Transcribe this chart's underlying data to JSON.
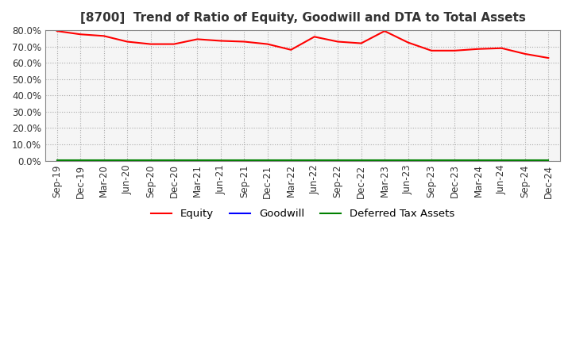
{
  "title": "[8700]  Trend of Ratio of Equity, Goodwill and DTA to Total Assets",
  "x_labels": [
    "Sep-19",
    "Dec-19",
    "Mar-20",
    "Jun-20",
    "Sep-20",
    "Dec-20",
    "Mar-21",
    "Jun-21",
    "Sep-21",
    "Dec-21",
    "Mar-22",
    "Jun-22",
    "Sep-22",
    "Dec-22",
    "Mar-23",
    "Jun-23",
    "Sep-23",
    "Dec-23",
    "Mar-24",
    "Jun-24",
    "Sep-24",
    "Dec-24"
  ],
  "equity": [
    79.5,
    77.5,
    76.5,
    73.0,
    71.5,
    71.5,
    74.5,
    73.5,
    73.0,
    71.5,
    68.0,
    76.0,
    73.0,
    72.0,
    79.5,
    72.5,
    67.5,
    67.5,
    68.5,
    69.0,
    65.5,
    63.0
  ],
  "goodwill": [
    0.0,
    0.0,
    0.0,
    0.0,
    0.0,
    0.0,
    0.0,
    0.0,
    0.0,
    0.0,
    0.0,
    0.0,
    0.0,
    0.0,
    0.0,
    0.0,
    0.0,
    0.0,
    0.0,
    0.0,
    0.0,
    0.0
  ],
  "dta": [
    0.3,
    0.3,
    0.3,
    0.3,
    0.3,
    0.3,
    0.3,
    0.3,
    0.3,
    0.3,
    0.3,
    0.3,
    0.3,
    0.3,
    0.3,
    0.3,
    0.3,
    0.3,
    0.3,
    0.3,
    0.3,
    0.3
  ],
  "equity_color": "#ff0000",
  "goodwill_color": "#0000ff",
  "dta_color": "#008000",
  "ylim": [
    0,
    80
  ],
  "yticks": [
    0,
    10,
    20,
    30,
    40,
    50,
    60,
    70,
    80
  ],
  "plot_bg_color": "#f5f5f5",
  "fig_bg_color": "#ffffff",
  "grid_color": "#aaaaaa",
  "title_fontsize": 11,
  "tick_fontsize": 8.5
}
